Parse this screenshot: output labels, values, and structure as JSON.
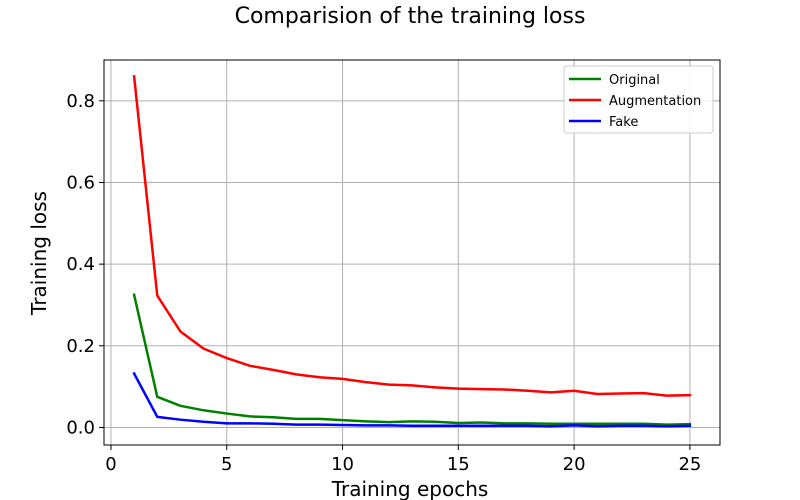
{
  "chart_data": {
    "type": "line",
    "title": "Comparision of the training loss",
    "xlabel": "Training epochs",
    "ylabel": "Training loss",
    "xlim": [
      -0.3,
      26.3
    ],
    "ylim": [
      -0.043,
      0.9
    ],
    "xticks": [
      0,
      5,
      10,
      15,
      20,
      25
    ],
    "yticks": [
      0.0,
      0.2,
      0.4,
      0.6,
      0.8
    ],
    "grid": true,
    "legend_position": "top-right",
    "x": [
      1,
      2,
      3,
      4,
      5,
      6,
      7,
      8,
      9,
      10,
      11,
      12,
      13,
      14,
      15,
      16,
      17,
      18,
      19,
      20,
      21,
      22,
      23,
      24,
      25
    ],
    "series": [
      {
        "name": "Original",
        "color": "#008000",
        "values": [
          0.325,
          0.075,
          0.053,
          0.042,
          0.034,
          0.027,
          0.025,
          0.021,
          0.021,
          0.018,
          0.015,
          0.013,
          0.015,
          0.014,
          0.011,
          0.012,
          0.01,
          0.01,
          0.009,
          0.009,
          0.009,
          0.009,
          0.009,
          0.007,
          0.008
        ]
      },
      {
        "name": "Augmentation",
        "color": "#ff0000",
        "values": [
          0.86,
          0.323,
          0.235,
          0.193,
          0.17,
          0.151,
          0.141,
          0.13,
          0.123,
          0.119,
          0.111,
          0.105,
          0.103,
          0.098,
          0.095,
          0.094,
          0.093,
          0.09,
          0.086,
          0.09,
          0.082,
          0.083,
          0.084,
          0.078,
          0.079
        ]
      },
      {
        "name": "Fake",
        "color": "#0000ff",
        "values": [
          0.132,
          0.026,
          0.019,
          0.014,
          0.01,
          0.01,
          0.009,
          0.007,
          0.007,
          0.006,
          0.005,
          0.005,
          0.004,
          0.004,
          0.004,
          0.004,
          0.004,
          0.004,
          0.003,
          0.005,
          0.003,
          0.004,
          0.004,
          0.003,
          0.004
        ]
      }
    ]
  }
}
